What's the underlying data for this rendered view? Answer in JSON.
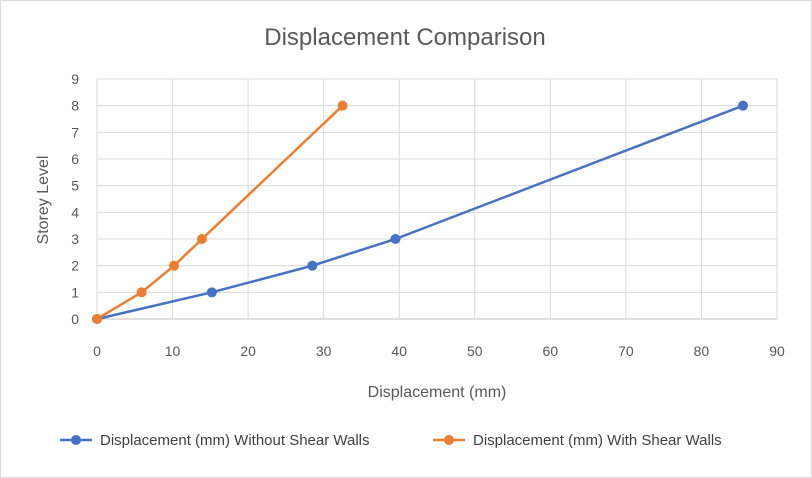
{
  "chart_data": {
    "type": "line",
    "title": "Displacement Comparison",
    "xlabel": "Displacement (mm)",
    "ylabel": "Storey Level",
    "xlim": [
      0,
      90
    ],
    "ylim": [
      0,
      9
    ],
    "x_ticks": [
      0,
      10,
      20,
      30,
      40,
      50,
      60,
      70,
      80,
      90
    ],
    "y_ticks": [
      0,
      1,
      2,
      3,
      4,
      5,
      6,
      7,
      8,
      9
    ],
    "grid": true,
    "legend_position": "bottom",
    "series": [
      {
        "name": "Displacement (mm) Without Shear Walls",
        "color": "#4472c4",
        "points": [
          {
            "x": 0,
            "y": 0
          },
          {
            "x": 15.2,
            "y": 1
          },
          {
            "x": 28.5,
            "y": 2
          },
          {
            "x": 39.5,
            "y": 3
          },
          {
            "x": 85.5,
            "y": 8
          }
        ]
      },
      {
        "name": "Displacement (mm) With Shear Walls",
        "color": "#ed7d31",
        "points": [
          {
            "x": 0,
            "y": 0
          },
          {
            "x": 5.9,
            "y": 1
          },
          {
            "x": 10.2,
            "y": 2
          },
          {
            "x": 13.9,
            "y": 3
          },
          {
            "x": 32.5,
            "y": 8
          }
        ]
      }
    ]
  }
}
